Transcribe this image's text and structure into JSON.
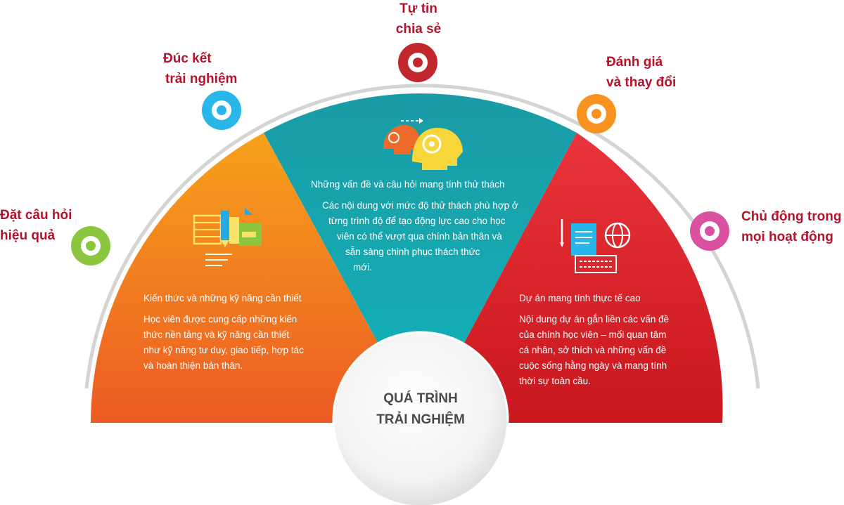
{
  "center": {
    "line1": "QUÁ TRÌNH",
    "line2": "TRẢI NGHIỆM"
  },
  "outer_labels": [
    {
      "id": "dat-cau-hoi",
      "lines": [
        "Đặt câu hỏi",
        "hiệu quả"
      ],
      "color": "#8cc63f"
    },
    {
      "id": "duc-ket",
      "lines": [
        "Đúc kết",
        "trải nghiệm"
      ],
      "color": "#29b6e8"
    },
    {
      "id": "tu-tin",
      "lines": [
        "Tự tin",
        "chia sẻ"
      ],
      "color": "#c1272d"
    },
    {
      "id": "danh-gia",
      "lines": [
        "Đánh giá",
        "và thay đổi"
      ],
      "color": "#f7931e"
    },
    {
      "id": "chu-dong",
      "lines": [
        "Chủ động trong",
        "mọi hoạt động"
      ],
      "color": "#d9519f"
    }
  ],
  "panels": {
    "left": {
      "title": "Kiến thức và những kỹ năng cần thiết",
      "body": [
        "Học viên được cung cấp những kiến",
        "thức nền tảng và kỹ năng cần thiết",
        "như kỹ năng tư duy, giao tiếp, hợp tác",
        "và hoàn thiện bản thân."
      ],
      "color": "#f39223",
      "icon": "books-pencil-icon"
    },
    "middle": {
      "title": "Những vấn đề và câu hỏi mang tính thử thách",
      "body": [
        "Các nội dung với mức độ thử thách phù hợp ở",
        "từng trình độ để tạo động lực cao cho học",
        "viên có thể vượt qua chính bản thân và",
        "sẵn sàng chinh phục thách thức",
        "mới."
      ],
      "color": "#14a3a8",
      "icon": "heads-gear-icon"
    },
    "right": {
      "title": "Dự án mang tính thực tế cao",
      "body": [
        "Nội dung dự án gắn liền các vấn đề",
        "của chính học viên – mối quan tâm",
        "cá nhân, sở thích và những vấn đề",
        "cuộc sống hằng ngày và mang tính",
        "thời sự toàn cầu."
      ],
      "color": "#d8232a",
      "icon": "document-globe-keyboard-icon"
    }
  }
}
